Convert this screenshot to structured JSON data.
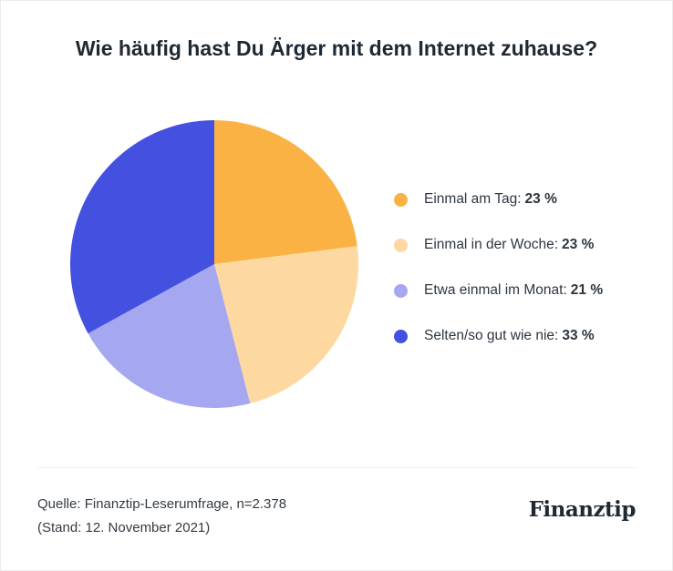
{
  "title": "Wie häufig hast Du Ärger mit dem Internet zuhause?",
  "chart_data": {
    "type": "pie",
    "title": "Wie häufig hast Du Ärger mit dem Internet zuhause?",
    "start_angle": "top, clockwise",
    "legend_placement": "right",
    "slices": [
      {
        "label": "Einmal am Tag:",
        "value": 23,
        "value_label": "23 %",
        "color": "#FBB244"
      },
      {
        "label": "Einmal in der Woche:",
        "value": 23,
        "value_label": "23 %",
        "color": "#FDD9A1"
      },
      {
        "label": "Etwa einmal im Monat:",
        "value": 21,
        "value_label": "21 %",
        "color": "#A5A7F0"
      },
      {
        "label": "Selten/so gut wie nie:",
        "value": 33,
        "value_label": "33 %",
        "color": "#4350E0"
      }
    ]
  },
  "footer": {
    "source_line1": "Quelle: Finanztip-Leserumfrage, n=2.378",
    "source_line2": "(Stand: 12. November 2021)",
    "logo": "Finanztip"
  }
}
